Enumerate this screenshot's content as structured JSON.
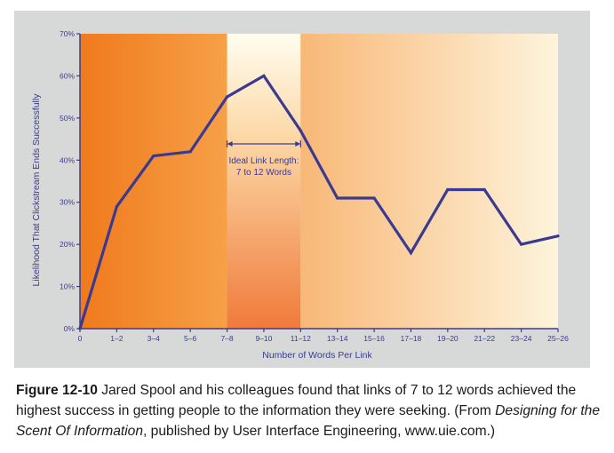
{
  "chart_data": {
    "type": "line",
    "xlabel": "Number of Words Per Link",
    "ylabel": "Likelihood That Clickstream Ends Successfully",
    "categories": [
      "0",
      "1–2",
      "3–4",
      "5–6",
      "7–8",
      "9–10",
      "11–12",
      "13–14",
      "15–16",
      "17–18",
      "19–20",
      "21–22",
      "23–24",
      "25–26"
    ],
    "y_ticks": [
      "0%",
      "10%",
      "20%",
      "30%",
      "40%",
      "50%",
      "60%",
      "70%"
    ],
    "ylim": [
      0,
      70
    ],
    "grid": false,
    "series": [
      {
        "values": [
          0,
          29,
          41,
          42,
          55,
          60,
          47,
          31,
          31,
          18,
          33,
          33,
          20,
          22
        ]
      }
    ],
    "highlight_range": {
      "from": "7–8",
      "to": "11–12"
    },
    "annotation": {
      "line1": "Ideal Link Length:",
      "line2": "7 to 12 Words"
    },
    "colors": {
      "line": "#3b3a92",
      "axis": "#3b3a92",
      "panel": "#d7d9d9"
    }
  },
  "caption": {
    "label": "Figure 12-10",
    "text1": " Jared Spool and his colleagues found that links of 7 to 12 words achieved the highest success in getting people to the information they were seeking. (From ",
    "book_title": "Designing for the Scent Of Information",
    "text2": ", published by User Interface Engineering, www.uie.com.)"
  }
}
